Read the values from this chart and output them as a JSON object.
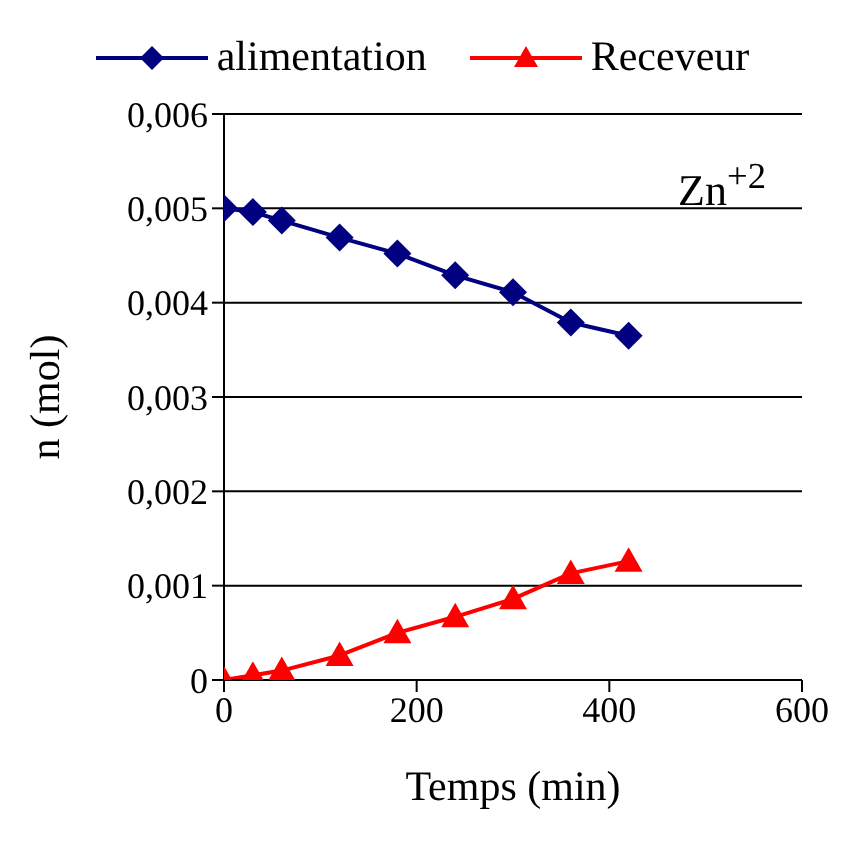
{
  "chart_data": {
    "type": "line",
    "xlabel": "Temps (min)",
    "ylabel": "n (mol)",
    "annotations": [
      "Zn$^{+2}$"
    ],
    "x": [
      0,
      30,
      60,
      120,
      180,
      240,
      300,
      360,
      420
    ],
    "series": [
      {
        "name": "alimentation",
        "color": "#000080",
        "marker": "diamond",
        "values": [
          0.005,
          0.00496,
          0.00487,
          0.00469,
          0.00452,
          0.00429,
          0.00411,
          0.00379,
          0.00365
        ]
      },
      {
        "name": "Receveur",
        "color": "#ff0000",
        "marker": "triangle",
        "values": [
          0,
          5e-05,
          0.0001,
          0.00026,
          0.0005,
          0.00067,
          0.00086,
          0.00113,
          0.00126
        ]
      }
    ],
    "xlim": [
      0,
      600
    ],
    "xticks": [
      0,
      200,
      400,
      600
    ],
    "ylim": [
      0,
      0.006
    ],
    "yticks": [
      0,
      {
        "value": 0.001,
        "label": "0,001"
      },
      {
        "value": 0.002,
        "label": "0,002"
      },
      {
        "value": 0.003,
        "label": "0,003"
      },
      {
        "value": 0.004,
        "label": "0,004"
      },
      {
        "value": 0.005,
        "label": "0,005"
      },
      {
        "value": 0.006,
        "label": "0,006"
      }
    ],
    "grid": "y",
    "legend": "top"
  }
}
